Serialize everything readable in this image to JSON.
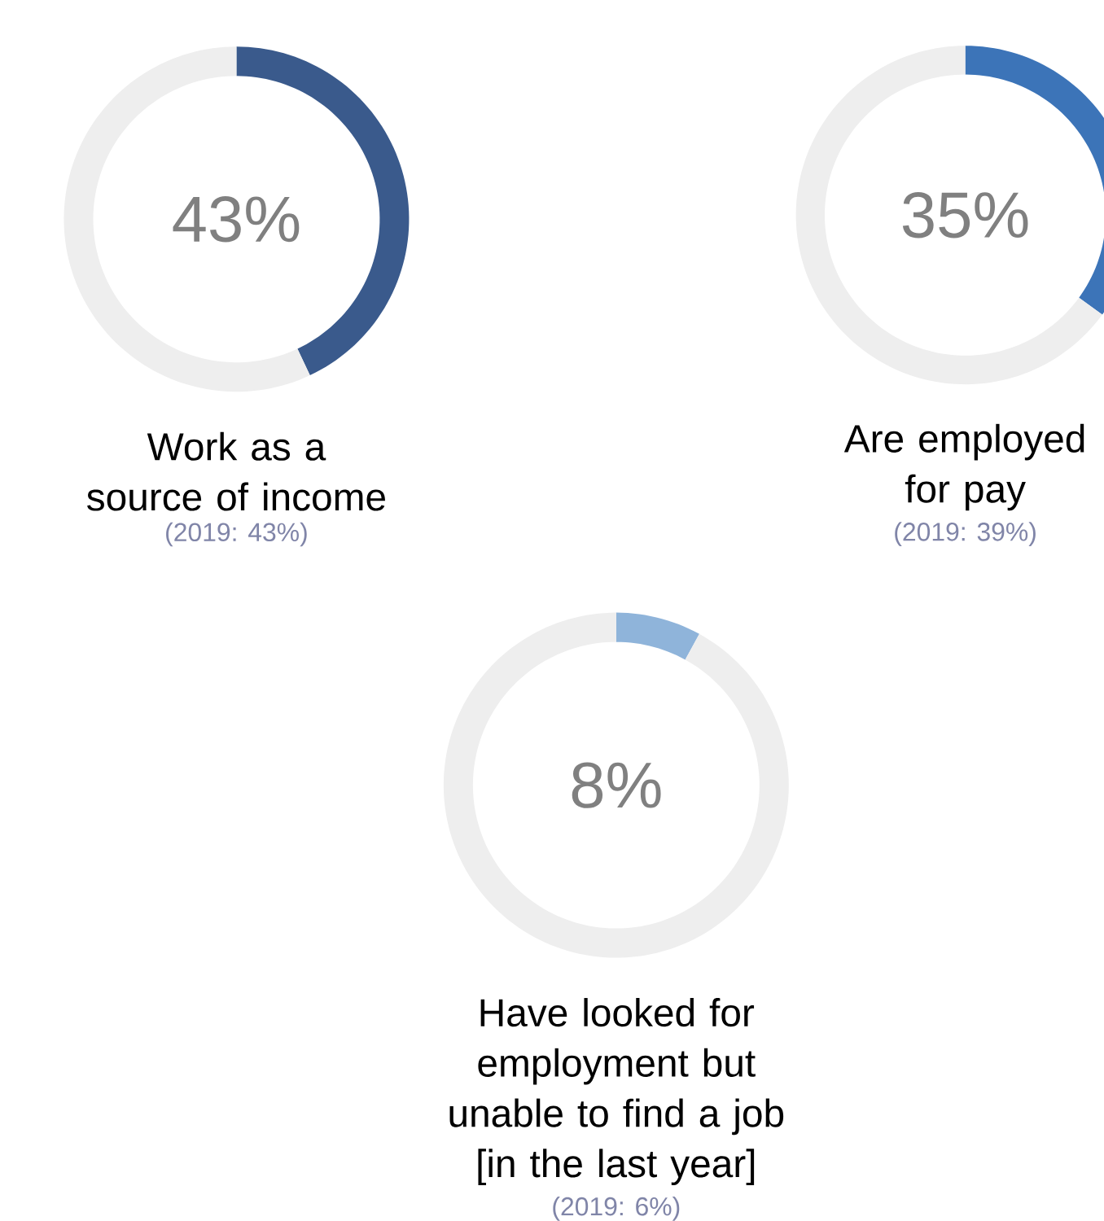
{
  "chart_data": [
    {
      "type": "donut",
      "categories": [
        null,
        null
      ],
      "values": [
        43,
        57
      ],
      "colors": [
        "#3a5a8c",
        "#eeeeee"
      ],
      "annotations": [
        "43%"
      ],
      "title": "Work as a source of income",
      "subtitle": "(2019: 43%)"
    },
    {
      "type": "donut",
      "categories": [
        null,
        null
      ],
      "values": [
        35,
        65
      ],
      "colors": [
        "#3c74b8",
        "#eeeeee"
      ],
      "annotations": [
        "35%"
      ],
      "title": "Are employed for pay",
      "subtitle": "(2019: 39%)"
    },
    {
      "type": "donut",
      "categories": [
        null,
        null
      ],
      "values": [
        8,
        92
      ],
      "colors": [
        "#8fb4da",
        "#eeeeee"
      ],
      "annotations": [
        "8%"
      ],
      "title": "Have looked for employment but unable to find a job [in the last year]",
      "subtitle": "(2019: 6%)"
    }
  ]
}
